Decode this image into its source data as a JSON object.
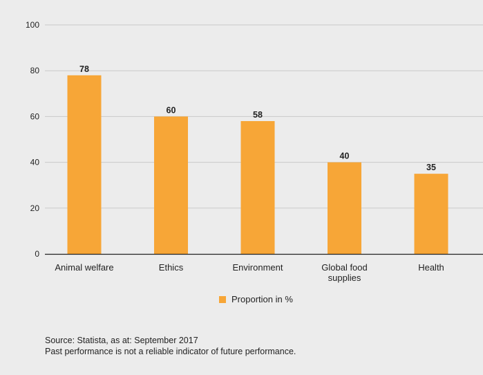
{
  "chart_data": {
    "type": "bar",
    "categories": [
      "Animal welfare",
      "Ethics",
      "Environment",
      "Global food supplies",
      "Health"
    ],
    "category_lines": [
      [
        "Animal welfare"
      ],
      [
        "Ethics"
      ],
      [
        "Environment"
      ],
      [
        "Global food",
        "supplies"
      ],
      [
        "Health"
      ]
    ],
    "series": [
      {
        "name": "Proportion in %",
        "values": [
          78,
          60,
          58,
          40,
          35
        ],
        "color": "#f7a637"
      }
    ],
    "ylim": [
      0,
      100
    ],
    "yticks": [
      0,
      20,
      40,
      60,
      80,
      100
    ],
    "xlabel": "",
    "ylabel": "",
    "grid": true,
    "legend_position": "bottom-center",
    "gridline_color": "#c9c9c9",
    "axis_line_color": "#222222"
  },
  "legend": {
    "label": "Proportion in %",
    "color": "#f7a637"
  },
  "footer": {
    "source": "Source: Statista, as at: September 2017",
    "disclaimer": "Past performance is not a reliable indicator of future performance."
  }
}
